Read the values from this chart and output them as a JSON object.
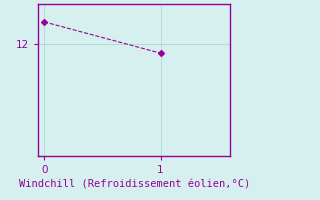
{
  "x": [
    0,
    1
  ],
  "y": [
    13.0,
    11.6
  ],
  "line_color": "#990099",
  "marker": "D",
  "marker_size": 3,
  "xlabel": "Windchill (Refroidissement éolien,°C)",
  "xlabel_color": "#990099",
  "xlabel_fontsize": 7.5,
  "ytick_label": "12",
  "ytick_value": 12,
  "xtick_values": [
    0,
    1
  ],
  "xlim": [
    -0.05,
    1.6
  ],
  "ylim": [
    7.0,
    13.8
  ],
  "background_color": "#d5f0ee",
  "grid_color": "#aad8d3",
  "tick_color": "#990099",
  "tick_fontsize": 7.5,
  "spine_color": "#990099",
  "linestyle": "--",
  "linewidth": 0.8
}
